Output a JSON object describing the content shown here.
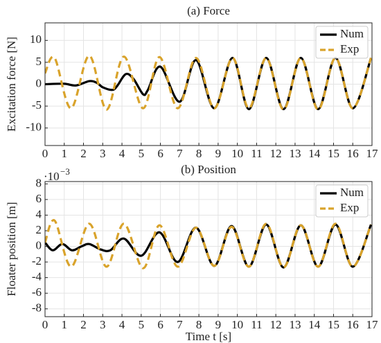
{
  "chart_data": [
    {
      "type": "line",
      "title": "(a) Force",
      "ylabel": "Excitation force [N]",
      "xlim": [
        0,
        17
      ],
      "xticks": [
        0,
        1,
        2,
        3,
        4,
        5,
        6,
        7,
        8,
        9,
        10,
        11,
        12,
        13,
        14,
        15,
        16,
        17
      ],
      "ylim": [
        -14,
        14
      ],
      "yticks": [
        -10,
        -5,
        0,
        5,
        10
      ],
      "grid": true,
      "legend": "upper right",
      "series": [
        {
          "name": "Num",
          "color": "#000000",
          "dash": false,
          "x": [
            0,
            1,
            1.6,
            2.3,
            2.7,
            3.0,
            3.5,
            3.75,
            4.2,
            4.6,
            5.1,
            5.35,
            6.0,
            7.0,
            7.85,
            8.8,
            9.75,
            10.6,
            11.5,
            12.4,
            13.3,
            14.2,
            15.1,
            16.0,
            16.95
          ],
          "values": [
            0,
            0.1,
            -0.3,
            0.7,
            0.3,
            -0.7,
            -1.3,
            -0.4,
            2.3,
            1.2,
            -2.3,
            -1.3,
            4,
            -4,
            5.5,
            -5.5,
            6,
            -5.7,
            6,
            -5.7,
            6,
            -5.7,
            6,
            -5.5,
            6
          ]
        },
        {
          "name": "Exp",
          "color": "#d9a32b",
          "dash": true,
          "x": [
            0,
            0.5,
            1.35,
            2.3,
            3.2,
            4.1,
            5.1,
            5.95,
            6.9,
            7.85,
            8.8,
            9.75,
            10.6,
            11.5,
            12.4,
            13.3,
            14.2,
            15.1,
            16.0,
            16.95
          ],
          "values": [
            2.5,
            6,
            -5.5,
            6.5,
            -5.8,
            6.3,
            -5.5,
            6.2,
            -5.5,
            6,
            -5.5,
            6,
            -5.5,
            6,
            -5.8,
            6,
            -5.8,
            6,
            -5.5,
            6
          ]
        }
      ]
    },
    {
      "type": "line",
      "title": "(b) Position",
      "ylabel": "Floater position [m]",
      "xlabel": "Time t [s]",
      "y_scale_base": "·10",
      "y_scale_exp": "−3",
      "xlim": [
        0,
        17
      ],
      "xticks": [
        0,
        1,
        2,
        3,
        4,
        5,
        6,
        7,
        8,
        9,
        10,
        11,
        12,
        13,
        14,
        15,
        16,
        17
      ],
      "ylim": [
        -9,
        8.3
      ],
      "yticks": [
        -8,
        -6,
        -4,
        -2,
        0,
        2,
        4,
        6,
        8
      ],
      "grid": true,
      "legend": "upper right",
      "series": [
        {
          "name": "Num",
          "color": "#000000",
          "dash": false,
          "x": [
            0,
            0.4,
            0.9,
            1.4,
            1.9,
            2.3,
            2.9,
            3.4,
            4.1,
            5.0,
            5.95,
            6.9,
            7.85,
            8.8,
            9.7,
            10.6,
            11.5,
            12.4,
            13.3,
            14.2,
            15.1,
            16.0,
            16.95
          ],
          "values": [
            0.5,
            -0.5,
            0.3,
            -0.5,
            0,
            0.3,
            -0.4,
            -0.5,
            1,
            -1.2,
            1.8,
            -2,
            2.4,
            -2.5,
            2.6,
            -2.6,
            2.8,
            -2.7,
            2.7,
            -2.6,
            2.8,
            -2.6,
            2.8
          ]
        },
        {
          "name": "Exp",
          "color": "#d9a32b",
          "dash": true,
          "x": [
            0,
            0.5,
            1.35,
            2.3,
            3.2,
            4.1,
            5.1,
            5.95,
            6.9,
            7.85,
            8.8,
            9.7,
            10.6,
            11.5,
            12.4,
            13.3,
            14.2,
            15.1,
            16.0,
            16.95
          ],
          "values": [
            0.5,
            3.3,
            -2.6,
            2.9,
            -2.6,
            2.9,
            -2.8,
            2.7,
            -2.6,
            2.4,
            -2.5,
            2.5,
            -2.6,
            2.9,
            -2.7,
            2.7,
            -2.6,
            2.9,
            -2.6,
            2.8
          ]
        }
      ]
    }
  ]
}
